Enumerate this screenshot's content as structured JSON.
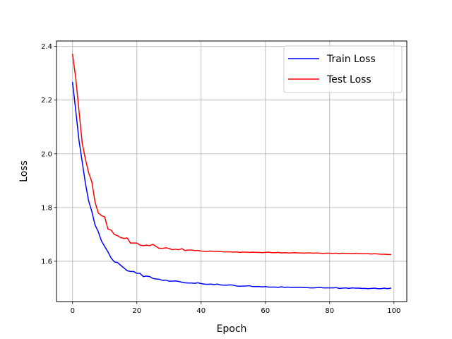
{
  "chart_data": {
    "type": "line",
    "xlabel": "Epoch",
    "ylabel": "Loss",
    "xlim": [
      -5,
      104
    ],
    "ylim": [
      1.45,
      2.42
    ],
    "xticks": [
      0,
      20,
      40,
      60,
      80,
      100
    ],
    "yticks": [
      1.6,
      1.8,
      2.0,
      2.2,
      2.4
    ],
    "xtick_labels": [
      "0",
      "20",
      "40",
      "60",
      "80",
      "100"
    ],
    "ytick_labels": [
      "1.6",
      "1.8",
      "2.0",
      "2.2",
      "2.4"
    ],
    "grid": true,
    "legend_position": "top-right",
    "x": [
      0,
      1,
      2,
      3,
      4,
      5,
      6,
      7,
      8,
      9,
      10,
      11,
      12,
      13,
      14,
      15,
      16,
      17,
      18,
      19,
      20,
      21,
      22,
      23,
      24,
      25,
      26,
      27,
      28,
      29,
      30,
      31,
      32,
      33,
      34,
      35,
      36,
      37,
      38,
      39,
      40,
      41,
      42,
      43,
      44,
      45,
      46,
      47,
      48,
      49,
      50,
      51,
      52,
      53,
      54,
      55,
      56,
      57,
      58,
      59,
      60,
      61,
      62,
      63,
      64,
      65,
      66,
      67,
      68,
      69,
      70,
      71,
      72,
      73,
      74,
      75,
      76,
      77,
      78,
      79,
      80,
      81,
      82,
      83,
      84,
      85,
      86,
      87,
      88,
      89,
      90,
      91,
      92,
      93,
      94,
      95,
      96,
      97,
      98,
      99
    ],
    "series": [
      {
        "name": "Train Loss",
        "color": "#0000ff",
        "values": [
          2.265,
          2.16,
          2.05,
          1.97,
          1.89,
          1.825,
          1.785,
          1.735,
          1.71,
          1.675,
          1.655,
          1.635,
          1.612,
          1.598,
          1.595,
          1.585,
          1.575,
          1.565,
          1.562,
          1.562,
          1.555,
          1.555,
          1.543,
          1.545,
          1.543,
          1.536,
          1.534,
          1.533,
          1.529,
          1.53,
          1.526,
          1.526,
          1.527,
          1.525,
          1.522,
          1.52,
          1.519,
          1.519,
          1.518,
          1.52,
          1.517,
          1.515,
          1.514,
          1.515,
          1.513,
          1.515,
          1.512,
          1.511,
          1.511,
          1.512,
          1.511,
          1.508,
          1.507,
          1.508,
          1.508,
          1.509,
          1.506,
          1.506,
          1.506,
          1.505,
          1.506,
          1.504,
          1.504,
          1.504,
          1.503,
          1.505,
          1.503,
          1.504,
          1.503,
          1.503,
          1.503,
          1.503,
          1.502,
          1.502,
          1.501,
          1.501,
          1.502,
          1.503,
          1.501,
          1.501,
          1.501,
          1.501,
          1.502,
          1.499,
          1.5,
          1.501,
          1.499,
          1.501,
          1.5,
          1.5,
          1.499,
          1.499,
          1.498,
          1.499,
          1.5,
          1.498,
          1.498,
          1.5,
          1.498,
          1.5
        ]
      },
      {
        "name": "Test Loss",
        "color": "#ff0000",
        "values": [
          2.37,
          2.28,
          2.16,
          2.04,
          1.98,
          1.93,
          1.895,
          1.82,
          1.78,
          1.77,
          1.765,
          1.72,
          1.716,
          1.7,
          1.695,
          1.688,
          1.685,
          1.687,
          1.668,
          1.668,
          1.668,
          1.66,
          1.658,
          1.66,
          1.658,
          1.663,
          1.655,
          1.648,
          1.648,
          1.65,
          1.648,
          1.643,
          1.645,
          1.643,
          1.647,
          1.64,
          1.642,
          1.642,
          1.64,
          1.64,
          1.638,
          1.637,
          1.637,
          1.638,
          1.637,
          1.637,
          1.636,
          1.635,
          1.635,
          1.635,
          1.634,
          1.635,
          1.633,
          1.634,
          1.634,
          1.633,
          1.634,
          1.633,
          1.633,
          1.632,
          1.633,
          1.634,
          1.632,
          1.632,
          1.633,
          1.631,
          1.632,
          1.631,
          1.631,
          1.632,
          1.631,
          1.631,
          1.63,
          1.631,
          1.631,
          1.63,
          1.631,
          1.63,
          1.629,
          1.63,
          1.63,
          1.629,
          1.63,
          1.628,
          1.63,
          1.629,
          1.629,
          1.628,
          1.629,
          1.628,
          1.628,
          1.628,
          1.628,
          1.627,
          1.628,
          1.627,
          1.626,
          1.626,
          1.625,
          1.625
        ]
      }
    ]
  }
}
